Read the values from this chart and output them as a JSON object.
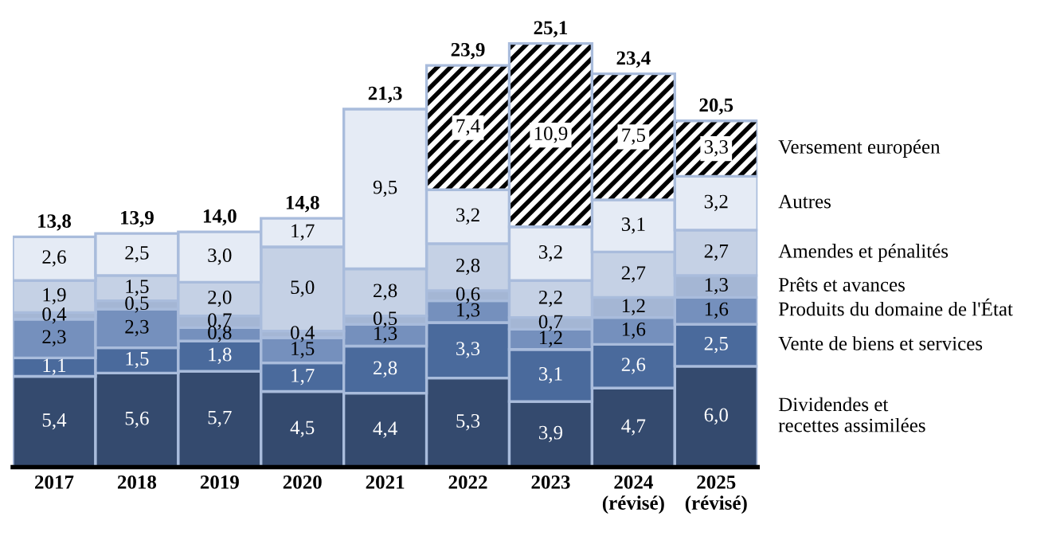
{
  "chart_data": {
    "type": "bar",
    "stacked": true,
    "legend": "right",
    "categories": [
      "2017",
      "2018",
      "2019",
      "2020",
      "2021",
      "2022",
      "2023",
      "2024\n(révisé)",
      "2025\n(révisé)"
    ],
    "series": [
      {
        "name": "Dividendes et\nrecettes assimilées",
        "color": "#344a6e",
        "values": [
          5.4,
          5.6,
          5.7,
          4.5,
          4.4,
          5.3,
          3.9,
          4.7,
          6.0
        ],
        "value_labels": [
          "5,4",
          "5,6",
          "5,7",
          "4,5",
          "4,4",
          "5,3",
          "3,9",
          "4,7",
          "6,0"
        ]
      },
      {
        "name": "Vente de biens et services",
        "color": "#4a6a9c",
        "values": [
          1.1,
          1.5,
          1.8,
          1.7,
          2.8,
          3.3,
          3.1,
          2.6,
          2.5
        ],
        "value_labels": [
          "1,1",
          "1,5",
          "1,8",
          "1,7",
          "2,8",
          "3,3",
          "3,1",
          "2,6",
          "2,5"
        ]
      },
      {
        "name": "Produits du domaine de l'État",
        "color": "#7590bd",
        "values": [
          2.3,
          2.3,
          0.8,
          1.5,
          1.3,
          1.3,
          1.2,
          1.6,
          1.6
        ],
        "value_labels": [
          "2,3",
          "2,3",
          "0,8",
          "1,5",
          "1,3",
          "1,3",
          "1,2",
          "1,6",
          "1,6"
        ]
      },
      {
        "name": "Prêts et avances",
        "color": "#a4b6d4",
        "values": [
          0.4,
          0.5,
          0.7,
          0.4,
          0.5,
          0.6,
          0.7,
          1.2,
          1.3
        ],
        "value_labels": [
          "0,4",
          "0,5",
          "0,7",
          "0,4",
          "0,5",
          "0,6",
          "0,7",
          "1,2",
          "1,3"
        ]
      },
      {
        "name": "Amendes et pénalités",
        "color": "#c5d1e5",
        "values": [
          1.9,
          1.5,
          2.0,
          5.0,
          2.8,
          2.8,
          2.2,
          2.7,
          2.7
        ],
        "value_labels": [
          "1,9",
          "1,5",
          "2,0",
          "5,0",
          "2,8",
          "2,8",
          "2,2",
          "2,7",
          "2,7"
        ]
      },
      {
        "name": "Autres",
        "color": "#e5ebf5",
        "values": [
          2.6,
          2.5,
          3.0,
          1.7,
          9.5,
          3.2,
          3.2,
          3.1,
          3.2
        ],
        "value_labels": [
          "2,6",
          "2,5",
          "3,0",
          "1,7",
          "9,5",
          "3,2",
          "3,2",
          "3,1",
          "3,2"
        ]
      },
      {
        "name": "Versement européen",
        "color": "#000000",
        "values": [
          null,
          null,
          null,
          null,
          null,
          7.4,
          10.9,
          7.5,
          3.3
        ],
        "value_labels": [
          null,
          null,
          null,
          null,
          null,
          "7,4",
          "10,9",
          "7,5",
          "3,3"
        ]
      }
    ],
    "totals": [
      "13,8",
      "13,9",
      "14,0",
      "14,8",
      "21,3",
      "23,9",
      "25,1",
      "23,4",
      "20,5"
    ]
  }
}
